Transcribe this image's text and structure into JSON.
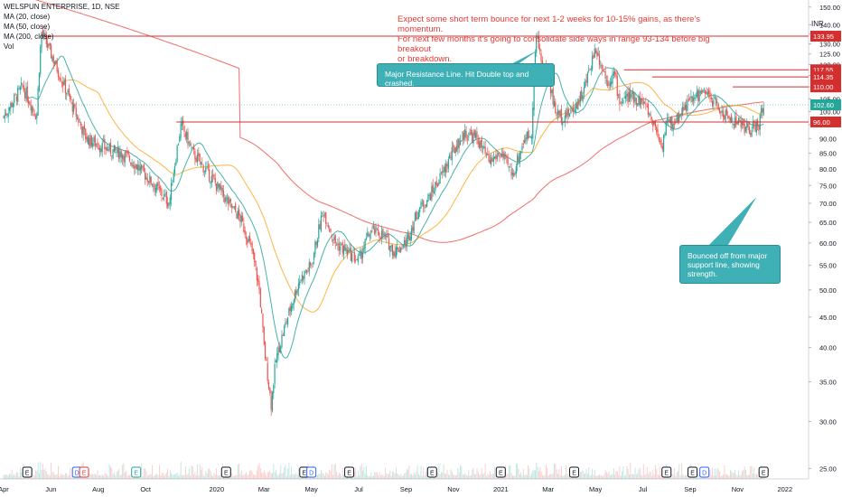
{
  "chart_data": {
    "type": "candlestick",
    "symbol_line": "WELSPUN ENTERPRISE, 1D, NSE",
    "indicators": [
      "MA (20, close)",
      "MA (50, close)",
      "MA (200, close)",
      "Vol"
    ],
    "price_unit": "INR",
    "y_axis": {
      "scale": "log",
      "ylim": [
        24,
        152
      ],
      "ticks": [
        25,
        30,
        35,
        40,
        45,
        50,
        55,
        60,
        65,
        70,
        75,
        80,
        85,
        90,
        95,
        100,
        105,
        110,
        115,
        120,
        125,
        130,
        135,
        140,
        150
      ],
      "tick_labels": [
        "25.00",
        "30.00",
        "35.00",
        "40.00",
        "45.00",
        "50.00",
        "55.00",
        "60.00",
        "65.00",
        "70.00",
        "75.00",
        "80.00",
        "85.00",
        "90.00",
        "95.00",
        "100.00",
        "105.00",
        "110.00",
        "115.00",
        "120.00",
        "125.00",
        "130.00",
        "135.00",
        "140.00",
        "150.00"
      ]
    },
    "x_axis": {
      "labels": [
        "Apr",
        "Jun",
        "Aug",
        "Oct",
        "2020",
        "Mar",
        "May",
        "Jul",
        "Sep",
        "Nov",
        "2021",
        "Mar",
        "May",
        "Jul",
        "Sep",
        "Nov",
        "2022"
      ],
      "label_months": [
        0,
        2,
        4,
        6,
        9,
        11,
        13,
        15,
        17,
        19,
        21,
        23,
        25,
        27,
        29,
        31,
        33
      ]
    },
    "price_path": {
      "x_months": [
        0,
        0.8,
        1.4,
        1.6,
        2.0,
        2.5,
        3.0,
        3.5,
        4.0,
        4.5,
        5.0,
        5.5,
        6.0,
        6.5,
        7.0,
        7.5,
        8.0,
        8.5,
        9.0,
        9.5,
        10.0,
        10.5,
        10.8,
        11.0,
        11.3,
        11.5,
        12.0,
        12.5,
        13.0,
        13.5,
        14.0,
        14.5,
        15.0,
        15.5,
        16.0,
        16.5,
        17.0,
        17.5,
        18.0,
        18.5,
        19.0,
        19.5,
        20.0,
        20.5,
        21.0,
        21.5,
        22.0,
        22.3,
        22.5,
        22.8,
        23.0,
        23.3,
        23.6,
        24.0,
        24.5,
        25.0,
        25.5,
        25.8,
        26.0,
        26.5,
        27.0,
        27.5,
        27.8,
        28.0,
        28.3,
        28.6,
        29.0,
        29.5,
        30.0,
        30.5,
        31.0,
        31.5,
        31.9,
        32.1
      ],
      "close": [
        98,
        110,
        98,
        136,
        125,
        112,
        100,
        90,
        88,
        86,
        85,
        82,
        78,
        74,
        70,
        95,
        85,
        80,
        75,
        70,
        66,
        58,
        50,
        40,
        32,
        38,
        45,
        52,
        55,
        68,
        60,
        58,
        56,
        63,
        62,
        58,
        60,
        68,
        72,
        78,
        86,
        92,
        90,
        82,
        85,
        78,
        90,
        92,
        134,
        118,
        115,
        100,
        98,
        100,
        108,
        128,
        112,
        116,
        104,
        106,
        104,
        95,
        87,
        96,
        95,
        100,
        104,
        108,
        104,
        98,
        96,
        93,
        95,
        103
      ]
    },
    "horizontal_levels": [
      {
        "value": 133.95,
        "label": "133.95",
        "from_month": 1.6
      },
      {
        "value": 117.55,
        "label": "117.55",
        "from_month": 26.2
      },
      {
        "value": 114.35,
        "label": "114.35",
        "from_month": 27.4
      },
      {
        "value": 110.0,
        "label": "110.00",
        "from_month": 30.8
      },
      {
        "value": 96.0,
        "label": "96.00",
        "from_month": 7.3
      }
    ],
    "current_price": {
      "value": 102.6,
      "label": "102.60"
    },
    "event_markers": [
      {
        "month": 1.0,
        "text": "E",
        "color": "#131722"
      },
      {
        "month": 3.1,
        "text": "D",
        "color": "#2962ff"
      },
      {
        "month": 3.4,
        "text": "E",
        "color": "#e53935"
      },
      {
        "month": 5.6,
        "text": "E",
        "color": "#26a69a"
      },
      {
        "month": 9.4,
        "text": "E",
        "color": "#131722"
      },
      {
        "month": 12.7,
        "text": "E",
        "color": "#131722"
      },
      {
        "month": 13.0,
        "text": "D",
        "color": "#2962ff"
      },
      {
        "month": 14.6,
        "text": "E",
        "color": "#131722"
      },
      {
        "month": 18.1,
        "text": "E",
        "color": "#131722"
      },
      {
        "month": 21.0,
        "text": "E",
        "color": "#131722"
      },
      {
        "month": 24.1,
        "text": "E",
        "color": "#131722"
      },
      {
        "month": 28.0,
        "text": "E",
        "color": "#131722"
      },
      {
        "month": 29.1,
        "text": "E",
        "color": "#131722"
      },
      {
        "month": 29.6,
        "text": "D",
        "color": "#2962ff"
      },
      {
        "month": 32.1,
        "text": "E",
        "color": "#131722"
      }
    ],
    "annotations": {
      "top_note": [
        "Expect some short term bounce for next 1-2 weeks for 10-15% gains, as there's momentum.",
        "For next few months it's going to consolidate side ways in range 93-134 before big breakout",
        "or breakdown."
      ],
      "resistance_note": "Major Resistance Line. Hit Double top and crashed.",
      "support_note": [
        "Bounced off from major",
        "support line, showing",
        "strength."
      ]
    },
    "colors": {
      "up": "#26a69a",
      "down": "#ef5350",
      "ma20": "#26a69a",
      "ma50": "#ffa726",
      "ma200": "#ef5350",
      "level": "#d32f2f",
      "note": "#e53935",
      "bubble": "#3fb0b5"
    }
  }
}
